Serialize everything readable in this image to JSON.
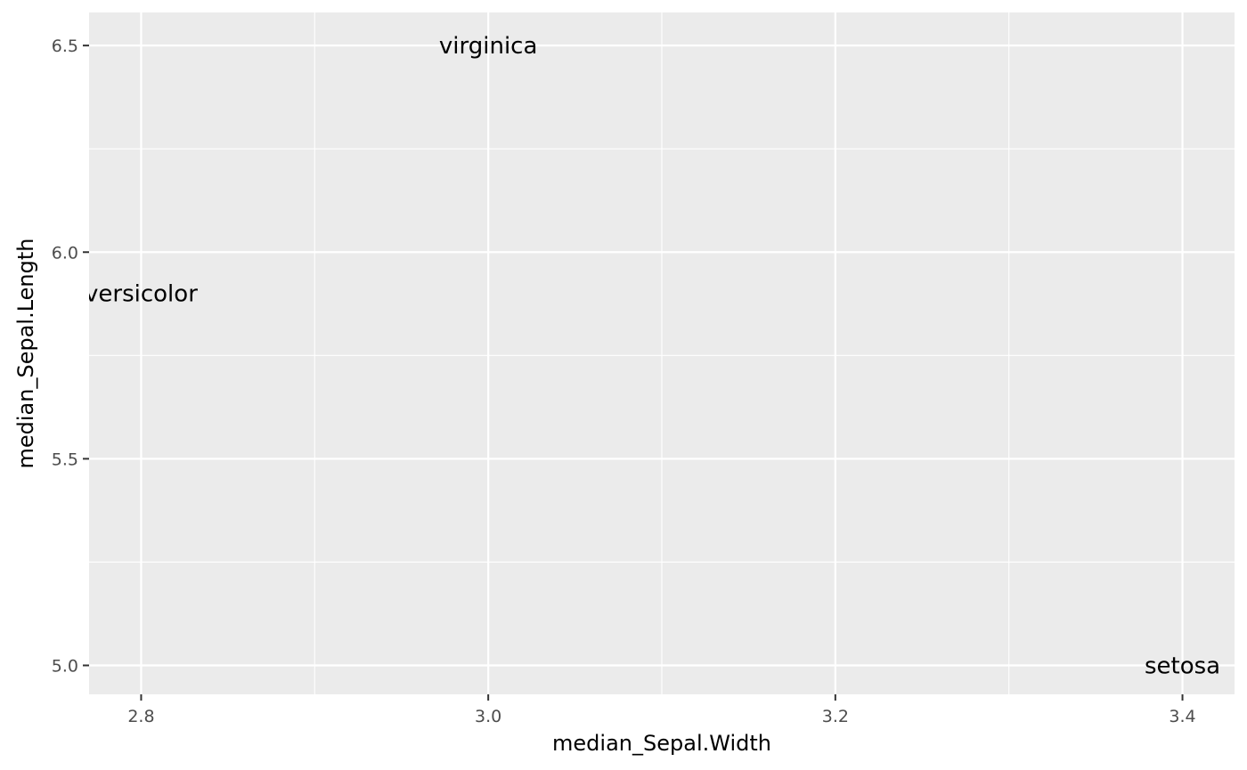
{
  "chart_data": {
    "type": "scatter",
    "geom": "text",
    "xlabel": "median_Sepal.Width",
    "ylabel": "median_Sepal.Length",
    "xlim": [
      2.77,
      3.43
    ],
    "ylim": [
      4.93,
      6.58
    ],
    "x_ticks": [
      2.8,
      3.0,
      3.2,
      3.4
    ],
    "x_tick_labels": [
      "2.8",
      "3.0",
      "3.2",
      "3.4"
    ],
    "y_ticks": [
      5.0,
      5.5,
      6.0,
      6.5
    ],
    "y_tick_labels": [
      "5.0",
      "5.5",
      "6.0",
      "6.5"
    ],
    "grid": true,
    "panel_background": "#ebebeb",
    "grid_color": "#ffffff",
    "points": [
      {
        "label": "setosa",
        "x": 3.4,
        "y": 5.0
      },
      {
        "label": "versicolor",
        "x": 2.8,
        "y": 5.9
      },
      {
        "label": "virginica",
        "x": 3.0,
        "y": 6.5
      }
    ]
  }
}
